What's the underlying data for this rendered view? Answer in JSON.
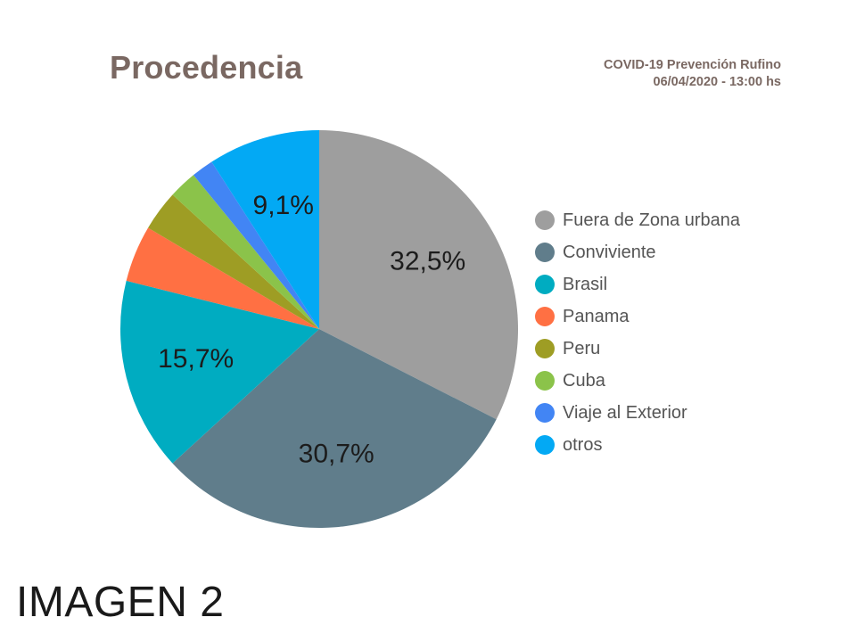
{
  "header": {
    "title": "Procedencia",
    "subtitle_line1": "COVID-19 Prevención Rufino",
    "subtitle_line2": "06/04/2020 - 13:00 hs"
  },
  "caption": "IMAGEN 2",
  "chart_data": {
    "type": "pie",
    "title": "Procedencia",
    "legend_position": "right",
    "categories": [
      "Fuera de Zona urbana",
      "Conviviente",
      "Brasil",
      "Panama",
      "Peru",
      "Cuba",
      "Viaje al Exterior",
      "otros"
    ],
    "values": [
      32.5,
      30.7,
      15.7,
      4.6,
      3.3,
      2.3,
      1.8,
      9.1
    ],
    "value_labels": [
      "32,5%",
      "30,7%",
      "15,7%",
      "",
      "",
      "",
      "",
      "9,1%"
    ],
    "colors": [
      "#9e9e9e",
      "#607d8b",
      "#00acc1",
      "#ff7043",
      "#9e9d24",
      "#8bc34a",
      "#4285f4",
      "#03a9f4"
    ]
  }
}
